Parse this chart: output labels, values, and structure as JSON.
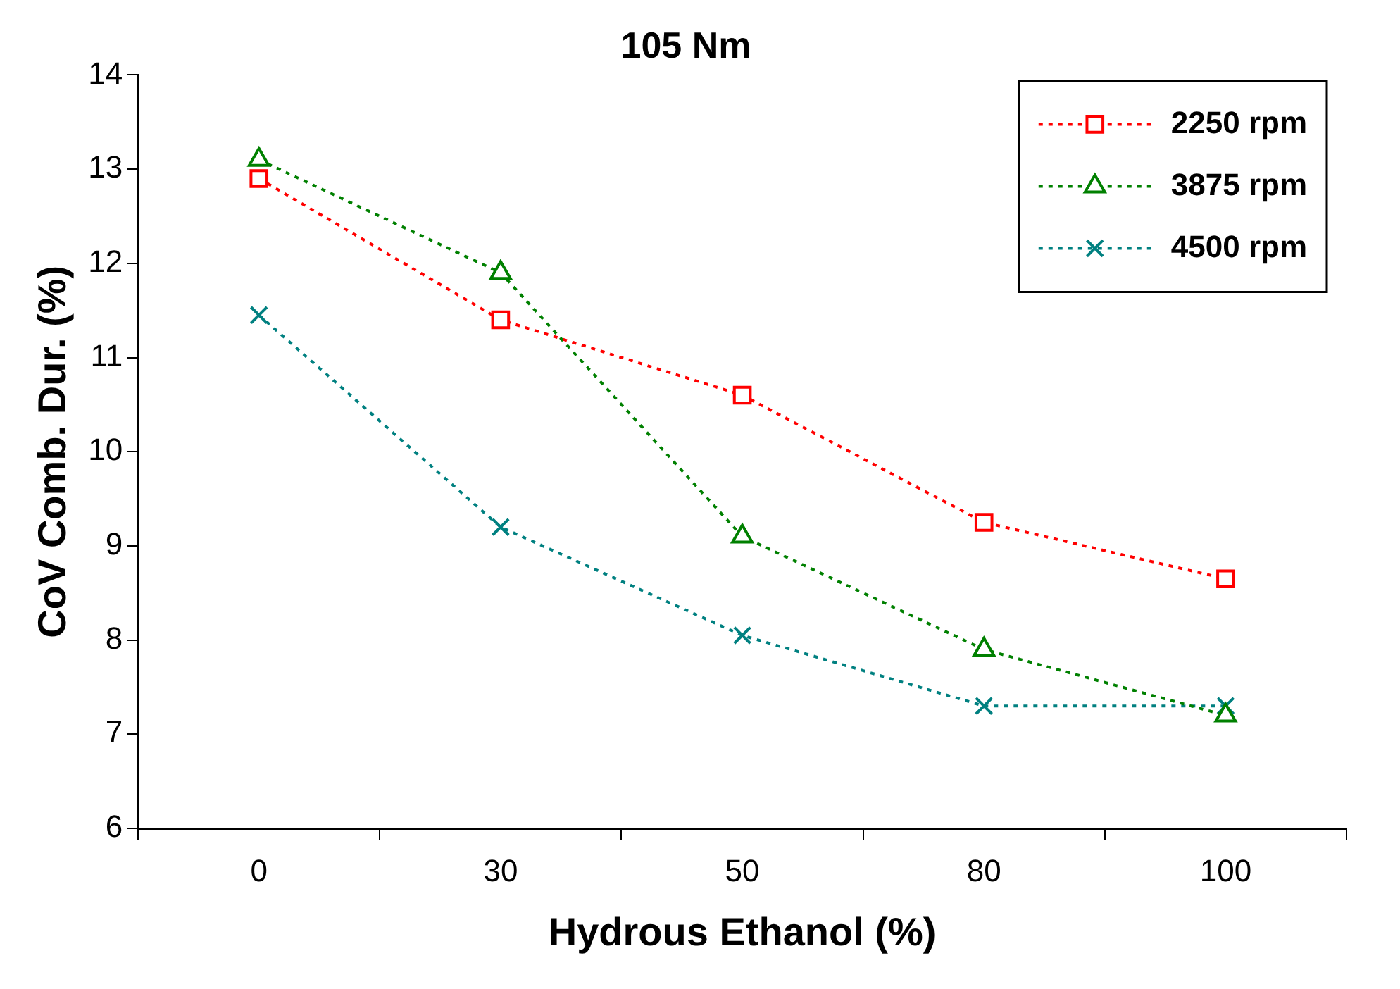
{
  "chart_data": {
    "type": "line",
    "title": "105 Nm",
    "xlabel": "Hydrous Ethanol (%)",
    "ylabel": "CoV Comb. Dur. (%)",
    "categories": [
      "0",
      "30",
      "50",
      "80",
      "100"
    ],
    "series": [
      {
        "name": "2250 rpm",
        "color": "#ff0000",
        "marker": "square",
        "values": [
          12.9,
          11.4,
          10.6,
          9.25,
          8.65
        ]
      },
      {
        "name": "3875 rpm",
        "color": "#008000",
        "marker": "triangle",
        "values": [
          13.1,
          11.9,
          9.1,
          7.9,
          7.2
        ]
      },
      {
        "name": "4500 rpm",
        "color": "#008080",
        "marker": "cross",
        "values": [
          11.45,
          9.2,
          8.05,
          7.3,
          7.3
        ]
      }
    ],
    "ylim": [
      6,
      14
    ],
    "yticks": [
      6,
      7,
      8,
      9,
      10,
      11,
      12,
      13,
      14
    ],
    "grid": false,
    "legend": "top right",
    "line_style": "dotted"
  }
}
